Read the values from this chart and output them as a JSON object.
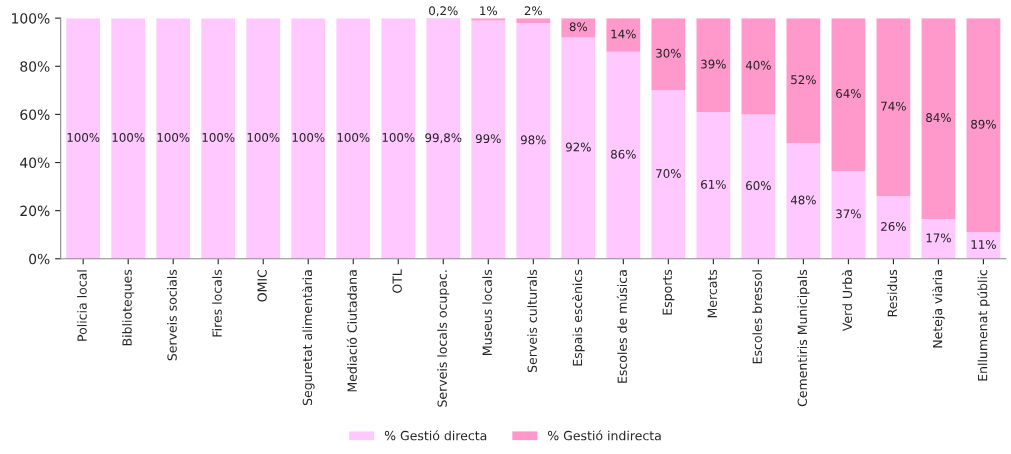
{
  "chart_data": {
    "type": "bar",
    "stacked": true,
    "legend": "bottom",
    "categories": [
      "Policia local",
      "Biblioteques",
      "Serveis socials",
      "Fires locals",
      "OMIC",
      "Seguretat alimentària",
      "Mediació Ciutadana",
      "OTL",
      "Serveis locals ocupac.",
      "Museus locals",
      "Serveis culturals",
      "Espais escènics",
      "Escoles de música",
      "Esports",
      "Mercats",
      "Escoles bressol",
      "Cementiris Municipals",
      "Verd Urbà",
      "Residus",
      "Neteja viària",
      "Enllumenat públic"
    ],
    "series": [
      {
        "name": "% Gestió directa",
        "color": "#ffc9ff",
        "values": [
          100,
          100,
          100,
          100,
          100,
          100,
          100,
          100,
          99.8,
          99,
          98,
          92,
          86,
          70,
          61,
          60,
          48,
          36.5,
          26,
          16.5,
          11
        ],
        "value_labels": [
          "100%",
          "100%",
          "100%",
          "100%",
          "100%",
          "100%",
          "100%",
          "100%",
          "99,8%",
          "99%",
          "98%",
          "92%",
          "86%",
          "70%",
          "61%",
          "60%",
          "48%",
          "37%",
          "26%",
          "17%",
          "11%"
        ]
      },
      {
        "name": "% Gestió indirecta",
        "color": "#ff99cc",
        "values": [
          null,
          null,
          null,
          null,
          null,
          null,
          null,
          null,
          0.2,
          1,
          2,
          8,
          14,
          30,
          39,
          40,
          52,
          63.5,
          74,
          83.5,
          89
        ],
        "value_labels": [
          null,
          null,
          null,
          null,
          null,
          null,
          null,
          null,
          "0,2%",
          "1%",
          "2%",
          "8%",
          "14%",
          "30%",
          "39%",
          "40%",
          "52%",
          "64%",
          "74%",
          "84%",
          "89%"
        ]
      }
    ],
    "ylim": [
      0,
      100
    ],
    "yticks": [
      {
        "value": 0,
        "label": "0%"
      },
      {
        "value": 20,
        "label": "20%"
      },
      {
        "value": 40,
        "label": "40%"
      },
      {
        "value": 60,
        "label": "60%"
      },
      {
        "value": 80,
        "label": "80%"
      },
      {
        "value": 100,
        "label": "100%"
      }
    ]
  }
}
